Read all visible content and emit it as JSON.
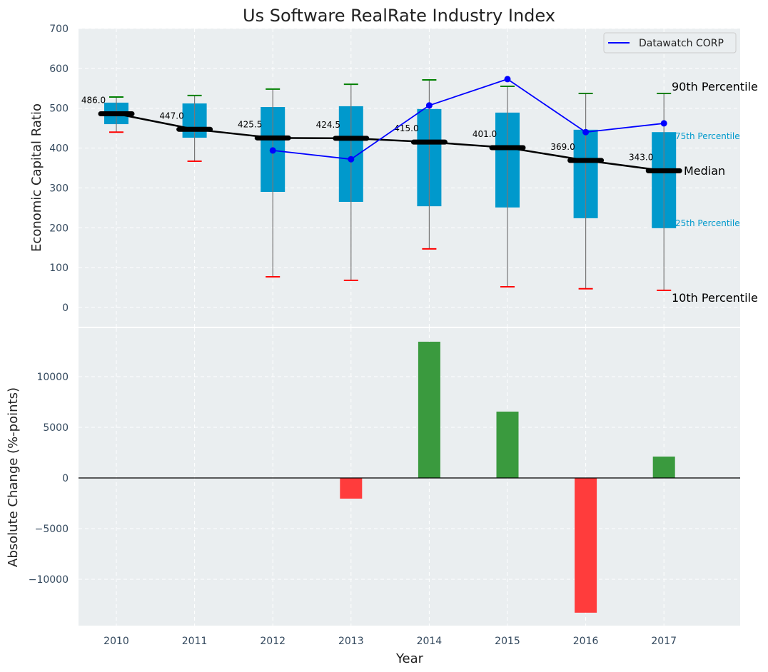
{
  "chart_data": [
    {
      "type": "box",
      "title": "Us Software RealRate Industry Index",
      "xlabel": "",
      "ylabel": "Economic Capital Ratio",
      "ylim": [
        -50,
        700
      ],
      "yticks": [
        0,
        100,
        200,
        300,
        400,
        500,
        600,
        700
      ],
      "grid": true,
      "categories": [
        "2010",
        "2011",
        "2012",
        "2013",
        "2014",
        "2015",
        "2016",
        "2017"
      ],
      "series": [
        {
          "name": "90th Percentile",
          "values": [
            528,
            532,
            548,
            560,
            571,
            555,
            537,
            537
          ]
        },
        {
          "name": "75th Percentile",
          "values": [
            514,
            512,
            503,
            505,
            498,
            489,
            446,
            440
          ]
        },
        {
          "name": "Median",
          "values": [
            486.0,
            447.0,
            425.5,
            424.5,
            415.0,
            401.0,
            369.0,
            343.0
          ]
        },
        {
          "name": "25th Percentile",
          "values": [
            460,
            426,
            290,
            265,
            254,
            251,
            224,
            199
          ]
        },
        {
          "name": "10th Percentile",
          "values": [
            440,
            367,
            77,
            68,
            147,
            52,
            47,
            43
          ]
        },
        {
          "name": "Datawatch CORP",
          "values": [
            null,
            null,
            394,
            372,
            507,
            573,
            440,
            462
          ]
        }
      ],
      "median_labels": [
        "486.0",
        "447.0",
        "425.5",
        "424.5",
        "415.0",
        "401.0",
        "369.0",
        "343.0"
      ],
      "annotations": {
        "p90": "90th Percentile",
        "p75": "75th Percentile",
        "median": "Median",
        "p25": "25th Percentile",
        "p10": "10th Percentile"
      },
      "legend": {
        "placement": "top-right",
        "entries": [
          "Datawatch CORP"
        ]
      },
      "colors": {
        "box": "#0099cc",
        "median": "#000000",
        "p90": "#008000",
        "p10": "#ff0000",
        "company": "#0000ff",
        "p75_label": "#0099cc"
      }
    },
    {
      "type": "bar",
      "title": "",
      "xlabel": "Year",
      "ylabel": "Absolute Change (%-points)",
      "ylim": [
        -14580,
        14790
      ],
      "yticks": [
        -10000,
        -5000,
        0,
        5000,
        10000
      ],
      "ytick_labels": [
        "−10000",
        "−5000",
        "0",
        "5000",
        "10000"
      ],
      "grid": true,
      "categories": [
        "2010",
        "2011",
        "2012",
        "2013",
        "2014",
        "2015",
        "2016",
        "2017"
      ],
      "values": [
        0,
        0,
        0,
        -2040,
        13450,
        6550,
        -13300,
        2110
      ],
      "colors": {
        "positive": "#3a9a3e",
        "negative": "#ff3c3c",
        "zero_line": "#000000"
      }
    }
  ]
}
